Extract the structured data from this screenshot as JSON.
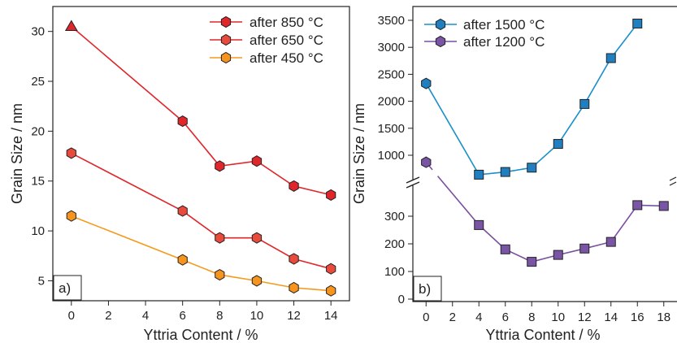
{
  "chart_data": [
    {
      "type": "line",
      "panel_label": "a)",
      "xlabel": "Yttria Content / %",
      "ylabel": "Grain Size / nm",
      "xlim": [
        -1,
        15
      ],
      "ylim": [
        3,
        32.5
      ],
      "xticks": [
        0,
        2,
        4,
        6,
        8,
        10,
        12,
        14
      ],
      "yticks": [
        5,
        10,
        15,
        20,
        25,
        30
      ],
      "grid": false,
      "legend_position": "top-right",
      "series": [
        {
          "name": "after 850 °C",
          "color": "#e0262b",
          "marker": "hexagon",
          "marker_fill": "#e0262b",
          "x": [
            0,
            6,
            8,
            10,
            12,
            14
          ],
          "y": [
            30.5,
            21.0,
            16.5,
            17.0,
            14.5,
            13.6
          ],
          "first_marker": "triangle"
        },
        {
          "name": "after 650 °C",
          "color": "#e0262b",
          "marker": "hexagon",
          "marker_fill": "#e84a3b",
          "x": [
            0,
            6,
            8,
            10,
            12,
            14
          ],
          "y": [
            17.8,
            12.0,
            9.3,
            9.3,
            7.2,
            6.2
          ]
        },
        {
          "name": "after 450 °C",
          "color": "#f59a1b",
          "marker": "hexagon",
          "marker_fill": "#f7941d",
          "x": [
            0,
            6,
            8,
            10,
            12,
            14
          ],
          "y": [
            11.5,
            7.1,
            5.6,
            5.0,
            4.3,
            4.0
          ]
        }
      ]
    },
    {
      "type": "line",
      "panel_label": "b)",
      "xlabel": "Yttria Content / %",
      "ylabel": "Grain Size / nm",
      "xlim": [
        -1,
        19
      ],
      "xticks": [
        0,
        2,
        4,
        6,
        8,
        10,
        12,
        14,
        16,
        18
      ],
      "y_break": true,
      "upper_ylim": [
        500,
        3500
      ],
      "upper_yticks": [
        1000,
        1500,
        2000,
        2500,
        3000,
        3500
      ],
      "lower_ylim": [
        0,
        360
      ],
      "lower_yticks": [
        0,
        100,
        200,
        300
      ],
      "grid": false,
      "legend_position": "top-left",
      "series": [
        {
          "name": "after 1500 °C",
          "color": "#1a8fc9",
          "marker": "square",
          "marker_fill": "#1f7fc0",
          "first_marker": "hexagon",
          "segment": "upper",
          "x": [
            0,
            4,
            6,
            8,
            10,
            12,
            14,
            16
          ],
          "y": [
            2330,
            640,
            690,
            770,
            1210,
            1950,
            2800,
            3440
          ]
        },
        {
          "name": "after 1200 °C",
          "color": "#7a4fa0",
          "marker": "square",
          "marker_fill": "#7b55a5",
          "first_marker": "hexagon",
          "segment": "lower",
          "x": [
            0,
            4,
            6,
            8,
            10,
            12,
            14,
            16,
            18
          ],
          "y": [
            870,
            268,
            180,
            135,
            160,
            183,
            207,
            340,
            337
          ]
        }
      ]
    }
  ]
}
